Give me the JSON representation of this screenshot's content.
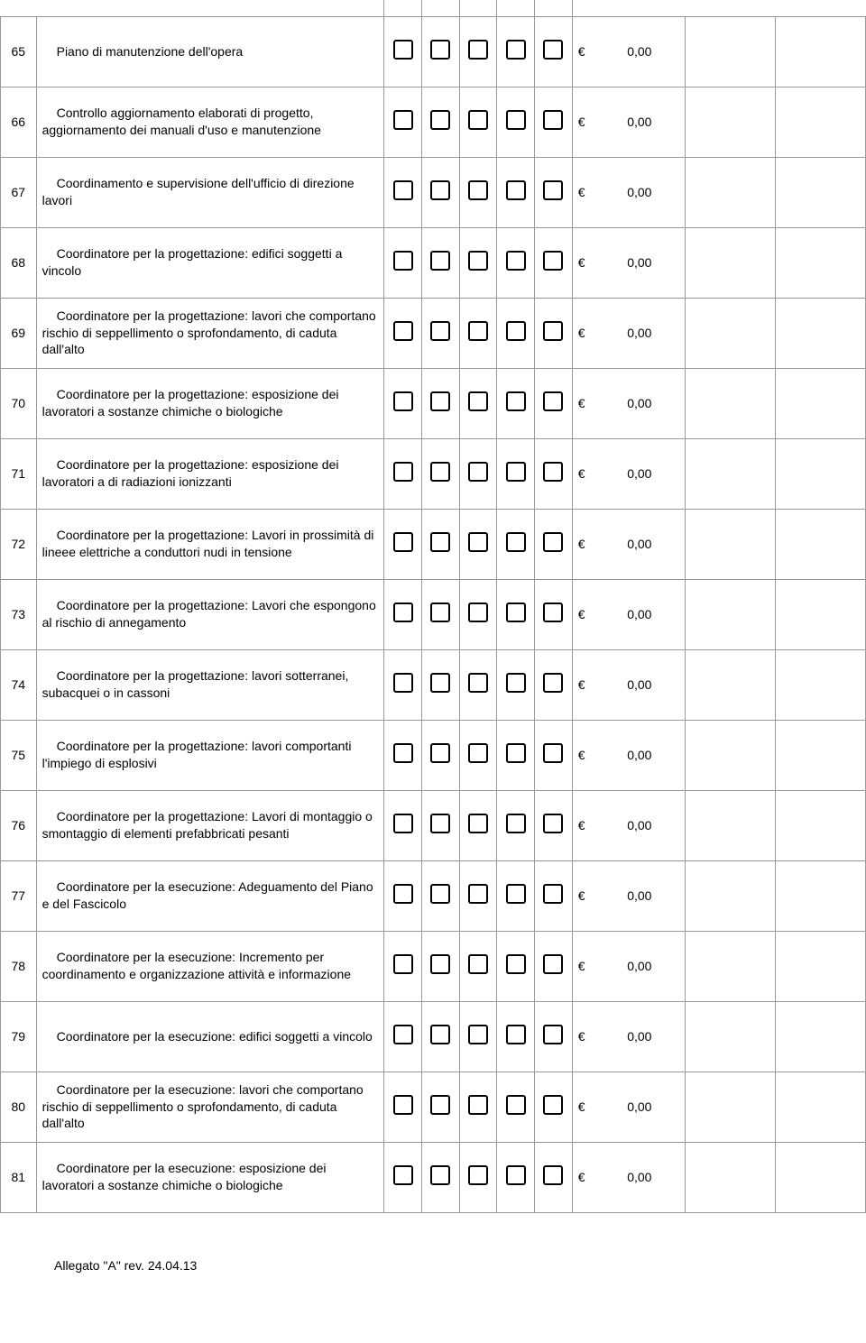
{
  "price_prefix": "€",
  "rows": [
    {
      "num": "65",
      "desc": "Piano di manutenzione dell'opera",
      "price": "0,00"
    },
    {
      "num": "66",
      "desc": "Controllo aggiornamento elaborati di progetto, aggiornamento dei manuali d'uso e manutenzione",
      "price": "0,00"
    },
    {
      "num": "67",
      "desc": "Coordinamento e supervisione dell'ufficio di direzione lavori",
      "price": "0,00"
    },
    {
      "num": "68",
      "desc": "Coordinatore per la progettazione: edifici soggetti a vincolo",
      "price": "0,00"
    },
    {
      "num": "69",
      "desc": "Coordinatore per la progettazione: lavori che comportano rischio di seppellimento o sprofondamento, di caduta dall'alto",
      "price": "0,00"
    },
    {
      "num": "70",
      "desc": "Coordinatore per la progettazione: esposizione dei lavoratori a sostanze chimiche o biologiche",
      "price": "0,00"
    },
    {
      "num": "71",
      "desc": "Coordinatore per la progettazione: esposizione dei lavoratori a di radiazioni ionizzanti",
      "price": "0,00"
    },
    {
      "num": "72",
      "desc": "Coordinatore per la progettazione: Lavori in prossimità di lineee elettriche a conduttori nudi in tensione",
      "price": "0,00"
    },
    {
      "num": "73",
      "desc": "Coordinatore per la progettazione: Lavori che espongono al rischio di annegamento",
      "price": "0,00"
    },
    {
      "num": "74",
      "desc": "Coordinatore per la progettazione: lavori sotterranei, subacquei o in cassoni",
      "price": "0,00"
    },
    {
      "num": "75",
      "desc": "Coordinatore per la progettazione: lavori comportanti l'impiego di esplosivi",
      "price": "0,00"
    },
    {
      "num": "76",
      "desc": "Coordinatore per la progettazione: Lavori di montaggio o smontaggio di elementi prefabbricati pesanti",
      "price": "0,00"
    },
    {
      "num": "77",
      "desc": "Coordinatore per la esecuzione: Adeguamento del Piano e del Fascicolo",
      "price": "0,00"
    },
    {
      "num": "78",
      "desc": "Coordinatore per la esecuzione: Incremento per coordinamento e organizzazione attività e informazione",
      "price": "0,00"
    },
    {
      "num": "79",
      "desc": "Coordinatore per la esecuzione: edifici soggetti a vincolo",
      "price": "0,00"
    },
    {
      "num": "80",
      "desc": "Coordinatore per la esecuzione: lavori che comportano rischio di seppellimento o sprofondamento, di caduta dall'alto",
      "price": "0,00"
    },
    {
      "num": "81",
      "desc": "Coordinatore per la esecuzione: esposizione dei lavoratori a sostanze chimiche o biologiche",
      "price": "0,00"
    }
  ],
  "footer": "Allegato \"A\"  rev. 24.04.13"
}
